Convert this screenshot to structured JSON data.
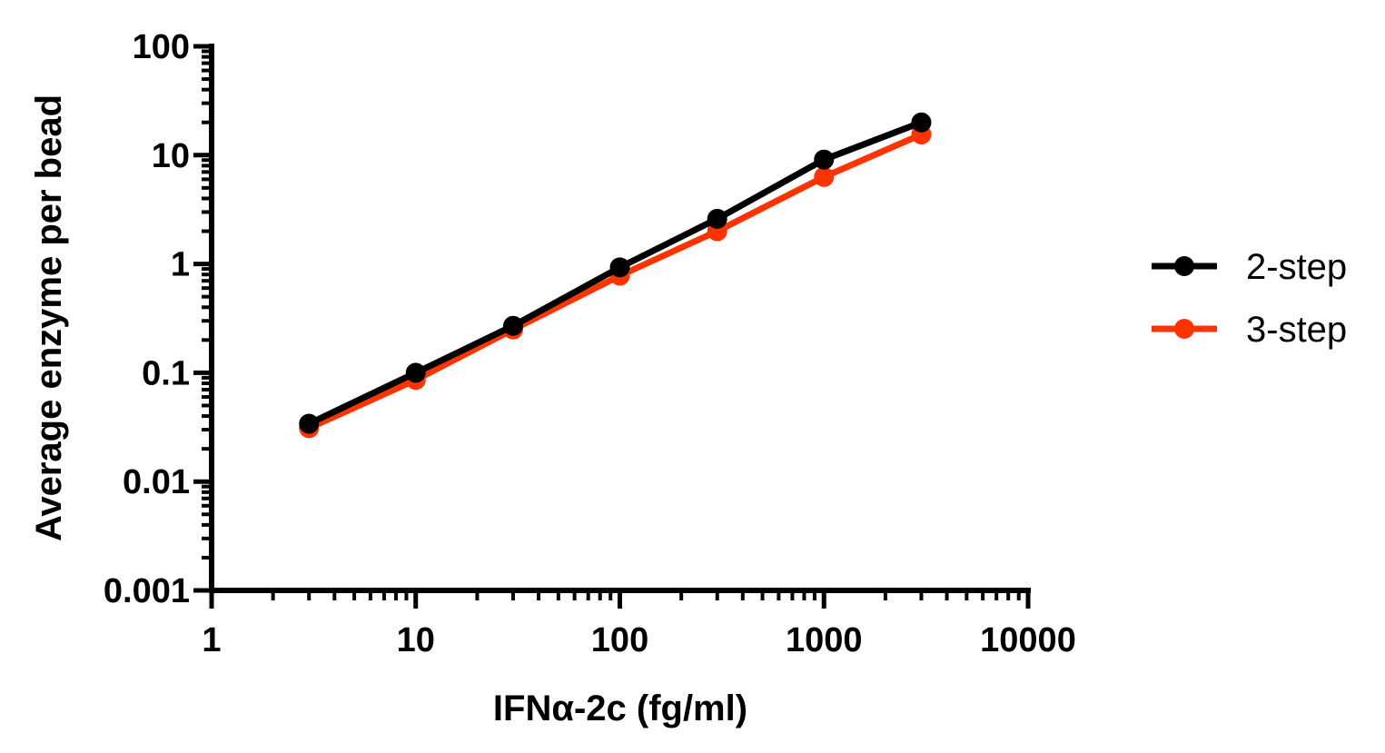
{
  "chart_data": {
    "type": "line",
    "title": "",
    "xlabel": "IFNα-2c (fg/ml)",
    "ylabel": "Average enzyme per bead",
    "x_scale": "log",
    "y_scale": "log",
    "xlim": [
      1,
      10000
    ],
    "ylim": [
      0.001,
      100
    ],
    "x_ticks": [
      "1",
      "10",
      "100",
      "1000",
      "10000"
    ],
    "y_ticks": [
      "0.001",
      "0.01",
      "0.1",
      "1",
      "10",
      "100"
    ],
    "x_tick_values": [
      1,
      10,
      100,
      1000,
      10000
    ],
    "y_tick_values": [
      0.001,
      0.01,
      0.1,
      1,
      10,
      100
    ],
    "grid": false,
    "legend_position": "right",
    "series": [
      {
        "name": "2-step",
        "color": "#000000",
        "x": [
          3,
          10,
          30,
          100,
          300,
          1000,
          3000
        ],
        "y": [
          0.034,
          0.1,
          0.27,
          0.93,
          2.6,
          9.1,
          20
        ]
      },
      {
        "name": "3-step",
        "color": "#ff3300",
        "x": [
          3,
          10,
          30,
          100,
          300,
          1000,
          3000
        ],
        "y": [
          0.031,
          0.086,
          0.25,
          0.78,
          2.0,
          6.3,
          15.5
        ]
      }
    ]
  }
}
